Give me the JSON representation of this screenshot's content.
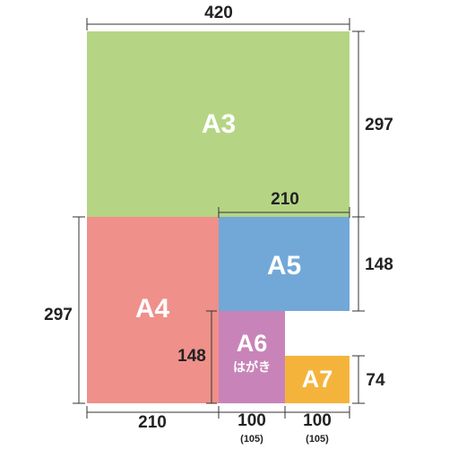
{
  "sheets": [
    {
      "label": "A3"
    },
    {
      "label": "A4"
    },
    {
      "label": "A5"
    },
    {
      "label": "A6",
      "sublabel": "はがき"
    },
    {
      "label": "A7"
    }
  ],
  "dimensions": {
    "top_width": "420",
    "a3_height": "297",
    "a5_width": "210",
    "a5_height": "148",
    "a7_height": "74",
    "a4_height": "297",
    "a6_height": "148",
    "bottom": [
      {
        "label": "210"
      },
      {
        "label": "100",
        "note": "(105)"
      },
      {
        "label": "100",
        "note": "(105)"
      }
    ]
  }
}
